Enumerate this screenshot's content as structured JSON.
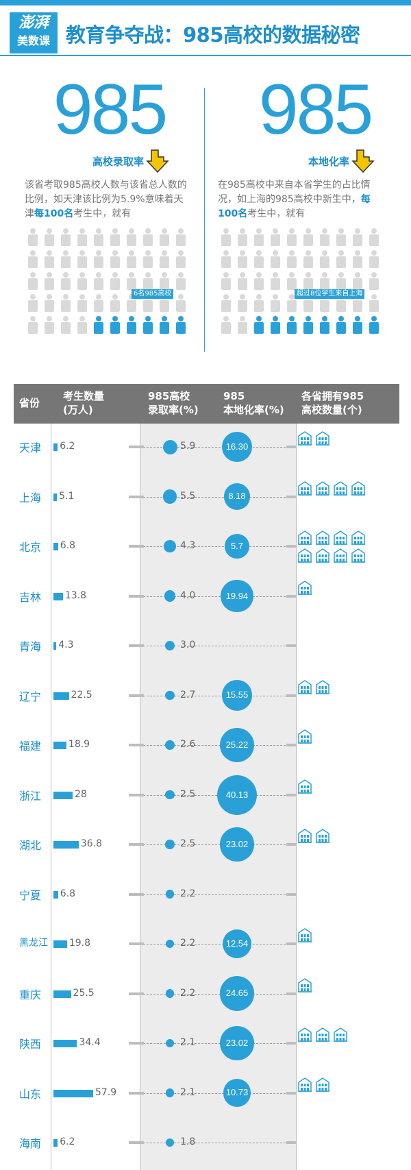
{
  "header": {
    "logo_line1": "澎湃",
    "logo_line2": "美数课",
    "title": "教育争夺战：985高校的数据秘密"
  },
  "intro_left": {
    "big_number": "985",
    "subtitle": "高校录取率",
    "desc_pre": "该省考取985高校人数与该省总人数的比例，如天津该比例为5.9%意味着天津",
    "desc_bold": "每100名",
    "desc_post": "考生中，就有",
    "caption": "6名985高校",
    "highlight_count": 6
  },
  "intro_right": {
    "big_number": "985",
    "subtitle": "本地化率",
    "desc_pre": "在985高校中来自本省学生的占比情况，如上海的985高校中新生中，",
    "desc_bold": "每100名",
    "desc_post": "考生中，就有",
    "caption": "超过8位学生来自上海",
    "highlight_count": 8
  },
  "table": {
    "headers": [
      "省份",
      "考生数量\n(万人)",
      "985高校\n录取率(%)",
      "985\n本地化率(%)",
      "各省拥有985\n高校数量(个)"
    ]
  },
  "chart_data": {
    "type": "table",
    "columns": [
      "省份",
      "考生数量(万人)",
      "985高校录取率(%)",
      "985本地化率(%)",
      "各省拥有985高校数量(个)"
    ],
    "rows": [
      {
        "province": "天津",
        "examinees": 6.2,
        "admission_rate": 5.9,
        "localization": "16.30",
        "universities": 2
      },
      {
        "province": "上海",
        "examinees": 5.1,
        "admission_rate": 5.5,
        "localization": "8.18",
        "universities": 4
      },
      {
        "province": "北京",
        "examinees": 6.8,
        "admission_rate": 4.3,
        "localization": "5.7",
        "universities": 8
      },
      {
        "province": "吉林",
        "examinees": 13.8,
        "admission_rate": 4.0,
        "localization": "19.94",
        "universities": 1
      },
      {
        "province": "青海",
        "examinees": 4.3,
        "admission_rate": 3.0,
        "localization": null,
        "universities": 0
      },
      {
        "province": "辽宁",
        "examinees": 22.5,
        "admission_rate": 2.7,
        "localization": "15.55",
        "universities": 2
      },
      {
        "province": "福建",
        "examinees": 18.9,
        "admission_rate": 2.6,
        "localization": "25.22",
        "universities": 1
      },
      {
        "province": "浙江",
        "examinees": 28,
        "admission_rate": 2.5,
        "localization": "40.13",
        "universities": 1
      },
      {
        "province": "湖北",
        "examinees": 36.8,
        "admission_rate": 2.5,
        "localization": "23.02",
        "universities": 2
      },
      {
        "province": "宁夏",
        "examinees": 6.8,
        "admission_rate": 2.2,
        "localization": null,
        "universities": 0
      },
      {
        "province": "黑龙江",
        "examinees": 19.8,
        "admission_rate": 2.2,
        "localization": "12.54",
        "universities": 1
      },
      {
        "province": "重庆",
        "examinees": 25.5,
        "admission_rate": 2.2,
        "localization": "24.65",
        "universities": 1
      },
      {
        "province": "陕西",
        "examinees": 34.4,
        "admission_rate": 2.1,
        "localization": "23.02",
        "universities": 3
      },
      {
        "province": "山东",
        "examinees": 57.9,
        "admission_rate": 2.1,
        "localization": "10.73",
        "universities": 2
      },
      {
        "province": "海南",
        "examinees": 6.2,
        "admission_rate": 1.8,
        "localization": null,
        "universities": 0
      }
    ],
    "accent_color": "#29a1d8"
  }
}
